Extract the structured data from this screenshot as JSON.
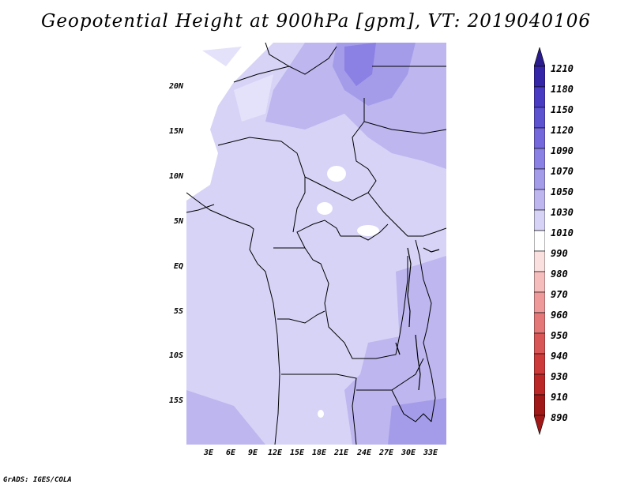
{
  "title": "Geopotential Height at 900hPa [gpm], VT: 2019040106",
  "credit": "GrADS: IGES/COLA",
  "map": {
    "y_ticks": [
      "20N",
      "15N",
      "10N",
      "5N",
      "EQ",
      "5S",
      "10S",
      "15S"
    ],
    "x_ticks": [
      "3E",
      "6E",
      "9E",
      "12E",
      "15E",
      "18E",
      "21E",
      "24E",
      "27E",
      "30E",
      "33E"
    ],
    "lon_range": [
      0,
      35
    ],
    "lat_range": [
      -20,
      25
    ]
  },
  "colorbar": {
    "levels": [
      "1210",
      "1180",
      "1150",
      "1120",
      "1090",
      "1070",
      "1050",
      "1030",
      "1010",
      "990",
      "980",
      "970",
      "960",
      "950",
      "940",
      "930",
      "910",
      "890"
    ],
    "colors": [
      "#2a1c8c",
      "#3526a8",
      "#4a3cc2",
      "#5d52d0",
      "#7468dc",
      "#8b80e4",
      "#a49ce9",
      "#bdb6ef",
      "#d6d3f6",
      "#ffffff",
      "#fbe0e0",
      "#f6bdbd",
      "#ef9a9a",
      "#e47878",
      "#d85656",
      "#cc3a3a",
      "#bb2626",
      "#a01818"
    ]
  }
}
